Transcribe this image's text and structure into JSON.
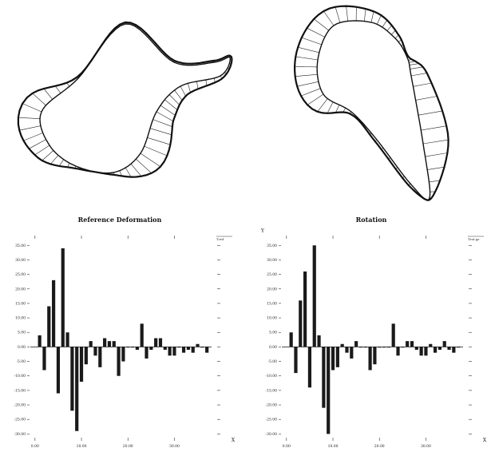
{
  "figure": {
    "left_y_symbol": "",
    "right_y_symbol": "Y"
  },
  "chart_data": [
    {
      "type": "bar",
      "title": "Reference Deformation",
      "xlabel": "X",
      "ylabel": "",
      "legend_tag": "T.ref",
      "xlim": [
        -1,
        38
      ],
      "ylim": [
        -31,
        37
      ],
      "yticks": [
        35,
        30,
        25,
        20,
        15,
        10,
        5,
        0,
        -5,
        -10,
        -15,
        -20,
        -25,
        -30
      ],
      "ytick_labels": [
        "35.00",
        "30.00",
        "25.00",
        "20.00",
        "15.00",
        "10.00",
        "5.00",
        "0.00",
        "-5.00",
        "-10.00",
        "-15.00",
        "-20.00",
        "-25.00",
        "-30.00"
      ],
      "xticks": [
        0,
        10,
        20,
        30
      ],
      "xtick_labels": [
        "0.00",
        "10.00",
        "20.00",
        "30.00"
      ],
      "grid": false,
      "bar_color": "#1a1a1a",
      "x": [
        1,
        2,
        3,
        4,
        5,
        6,
        7,
        8,
        9,
        10,
        11,
        12,
        13,
        14,
        15,
        16,
        17,
        18,
        19,
        20,
        21,
        22,
        23,
        24,
        25,
        26,
        27,
        28,
        29,
        30,
        31,
        32,
        33,
        34,
        35,
        36,
        37
      ],
      "values": [
        4,
        -8,
        14,
        23,
        -16,
        34,
        5,
        -22,
        -29,
        -12,
        -6,
        2,
        -3,
        -7,
        3,
        2,
        2,
        -10,
        -5,
        0,
        0,
        -1,
        8,
        -4,
        -1,
        3,
        3,
        -1,
        -3,
        -3,
        0,
        -2,
        -1,
        -2,
        1,
        0,
        -2
      ]
    },
    {
      "type": "bar",
      "title": "Rotation",
      "xlabel": "X",
      "ylabel": "Y",
      "legend_tag": "Trot.gr",
      "xlim": [
        -1,
        38
      ],
      "ylim": [
        -31,
        37
      ],
      "yticks": [
        35,
        30,
        25,
        20,
        15,
        10,
        5,
        0,
        -5,
        -10,
        -15,
        -20,
        -25,
        -30
      ],
      "ytick_labels": [
        "35.00",
        "30.00",
        "25.00",
        "20.00",
        "15.00",
        "10.00",
        "5.00",
        "0.00",
        "-5.00",
        "-10.00",
        "-15.00",
        "-20.00",
        "-25.00",
        "-30.00"
      ],
      "xticks": [
        0,
        10,
        20,
        30
      ],
      "xtick_labels": [
        "0.00",
        "10.00",
        "20.00",
        "30.00"
      ],
      "grid": false,
      "bar_color": "#1a1a1a",
      "x": [
        1,
        2,
        3,
        4,
        5,
        6,
        7,
        8,
        9,
        10,
        11,
        12,
        13,
        14,
        15,
        16,
        17,
        18,
        19,
        20,
        21,
        22,
        23,
        24,
        25,
        26,
        27,
        28,
        29,
        30,
        31,
        32,
        33,
        34,
        35,
        36,
        37
      ],
      "values": [
        5,
        -9,
        16,
        26,
        -14,
        35,
        4,
        -21,
        -30,
        -8,
        -7,
        1,
        -2,
        -4,
        2,
        0,
        0,
        -8,
        -6,
        0,
        0,
        0,
        8,
        -3,
        0,
        2,
        2,
        -1,
        -3,
        -3,
        1,
        -2,
        -1,
        2,
        -1,
        -2,
        0
      ]
    }
  ]
}
